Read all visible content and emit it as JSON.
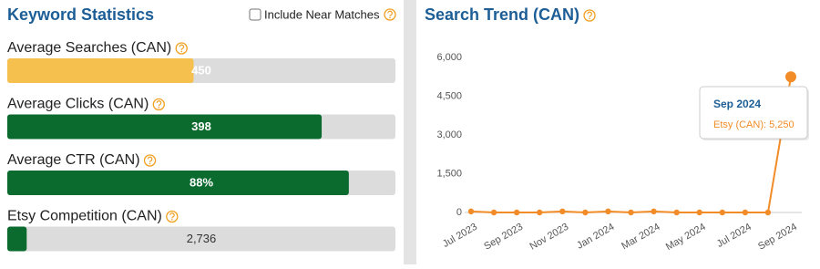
{
  "keyword_statistics": {
    "title": "Keyword Statistics",
    "include_near_matches": {
      "label": "Include Near Matches",
      "checked": false
    },
    "stats": [
      {
        "label": "Average Searches (CAN)",
        "value": 450,
        "fill": 48,
        "color": "#f5c04e"
      },
      {
        "label": "Average Clicks (CAN)",
        "value": 398,
        "fill": 81,
        "color": "#0b6b2f"
      },
      {
        "label": "Average CTR (CAN)",
        "value": 88,
        "value_label": "88%",
        "fill": 88,
        "color": "#0b6b2f"
      },
      {
        "label": "Etsy Competition (CAN)",
        "value": 2736,
        "value_label": "2,736",
        "fill": 5,
        "color": "#0b6b2f"
      }
    ]
  },
  "chart_data": {
    "type": "line",
    "title": "Search Trend (CAN)",
    "categories": [
      "Jul 2023",
      null,
      "Sep 2023",
      null,
      "Nov 2023",
      null,
      "Jan 2024",
      null,
      "Mar 2024",
      null,
      "May 2024",
      null,
      "Jul 2024",
      null,
      "Sep 2024"
    ],
    "series": [
      {
        "color": "#f28c28",
        "values": [
          40,
          0,
          0,
          0,
          40,
          0,
          40,
          0,
          40,
          0,
          0,
          0,
          0,
          0,
          5250
        ]
      }
    ],
    "ylim": [
      0,
      6000
    ],
    "yticks": [
      0,
      {
        "value": 1500,
        "label": "1,500"
      },
      {
        "value": 3000,
        "label": "3,000"
      },
      {
        "value": 4500,
        "label": "4,500"
      },
      {
        "value": 6000,
        "label": "6,000"
      }
    ],
    "grid": false,
    "tooltip": {
      "text": "Etsy (CAN): 5,250"
    }
  }
}
